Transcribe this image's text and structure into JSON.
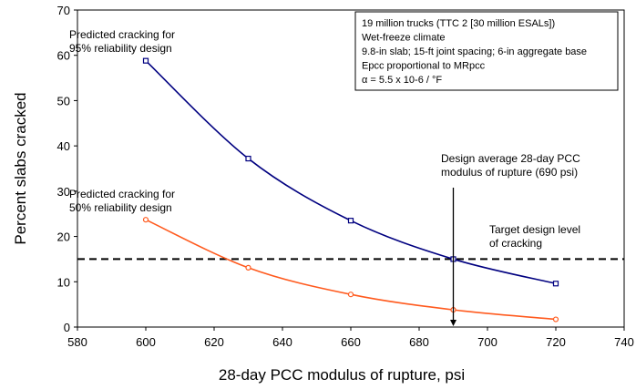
{
  "chart_data": {
    "type": "line",
    "xlabel": "28-day PCC modulus of rupture, psi",
    "ylabel": "Percent slabs cracked",
    "xlim": [
      580,
      740
    ],
    "ylim": [
      0,
      70
    ],
    "x_ticks": [
      "580",
      "600",
      "620",
      "640",
      "660",
      "680",
      "700",
      "720",
      "740"
    ],
    "y_ticks": [
      "0",
      "10",
      "20",
      "30",
      "40",
      "50",
      "60",
      "70"
    ],
    "grid": false,
    "legend": "none",
    "series": [
      {
        "label_lines": [
          "Predicted cracking for",
          "95% reliability design"
        ],
        "color": "#000080",
        "marker": "square",
        "x": [
          600,
          630,
          660,
          690,
          720
        ],
        "y": [
          58.8,
          37.2,
          23.5,
          15.0,
          9.6
        ]
      },
      {
        "label_lines": [
          "Predicted cracking for",
          "50% reliability design"
        ],
        "color": "#ff5a1e",
        "marker": "circle",
        "x": [
          600,
          630,
          660,
          690,
          720
        ],
        "y": [
          23.7,
          13.1,
          7.2,
          3.8,
          1.7
        ]
      }
    ],
    "target_line": {
      "y": 15,
      "label_lines": [
        "Target design level",
        "of cracking"
      ]
    },
    "design_line": {
      "x": 690,
      "label_lines": [
        "Design average 28-day PCC",
        "modulus of rupture (690 psi)"
      ]
    },
    "info_box": [
      "19 million trucks (TTC 2 [30 million ESALs])",
      "Wet-freeze climate",
      "9.8-in slab; 15-ft joint spacing; 6-in aggregate base",
      "Epcc proportional to MRpcc",
      "α = 5.5 x 10-6 / °F"
    ]
  }
}
